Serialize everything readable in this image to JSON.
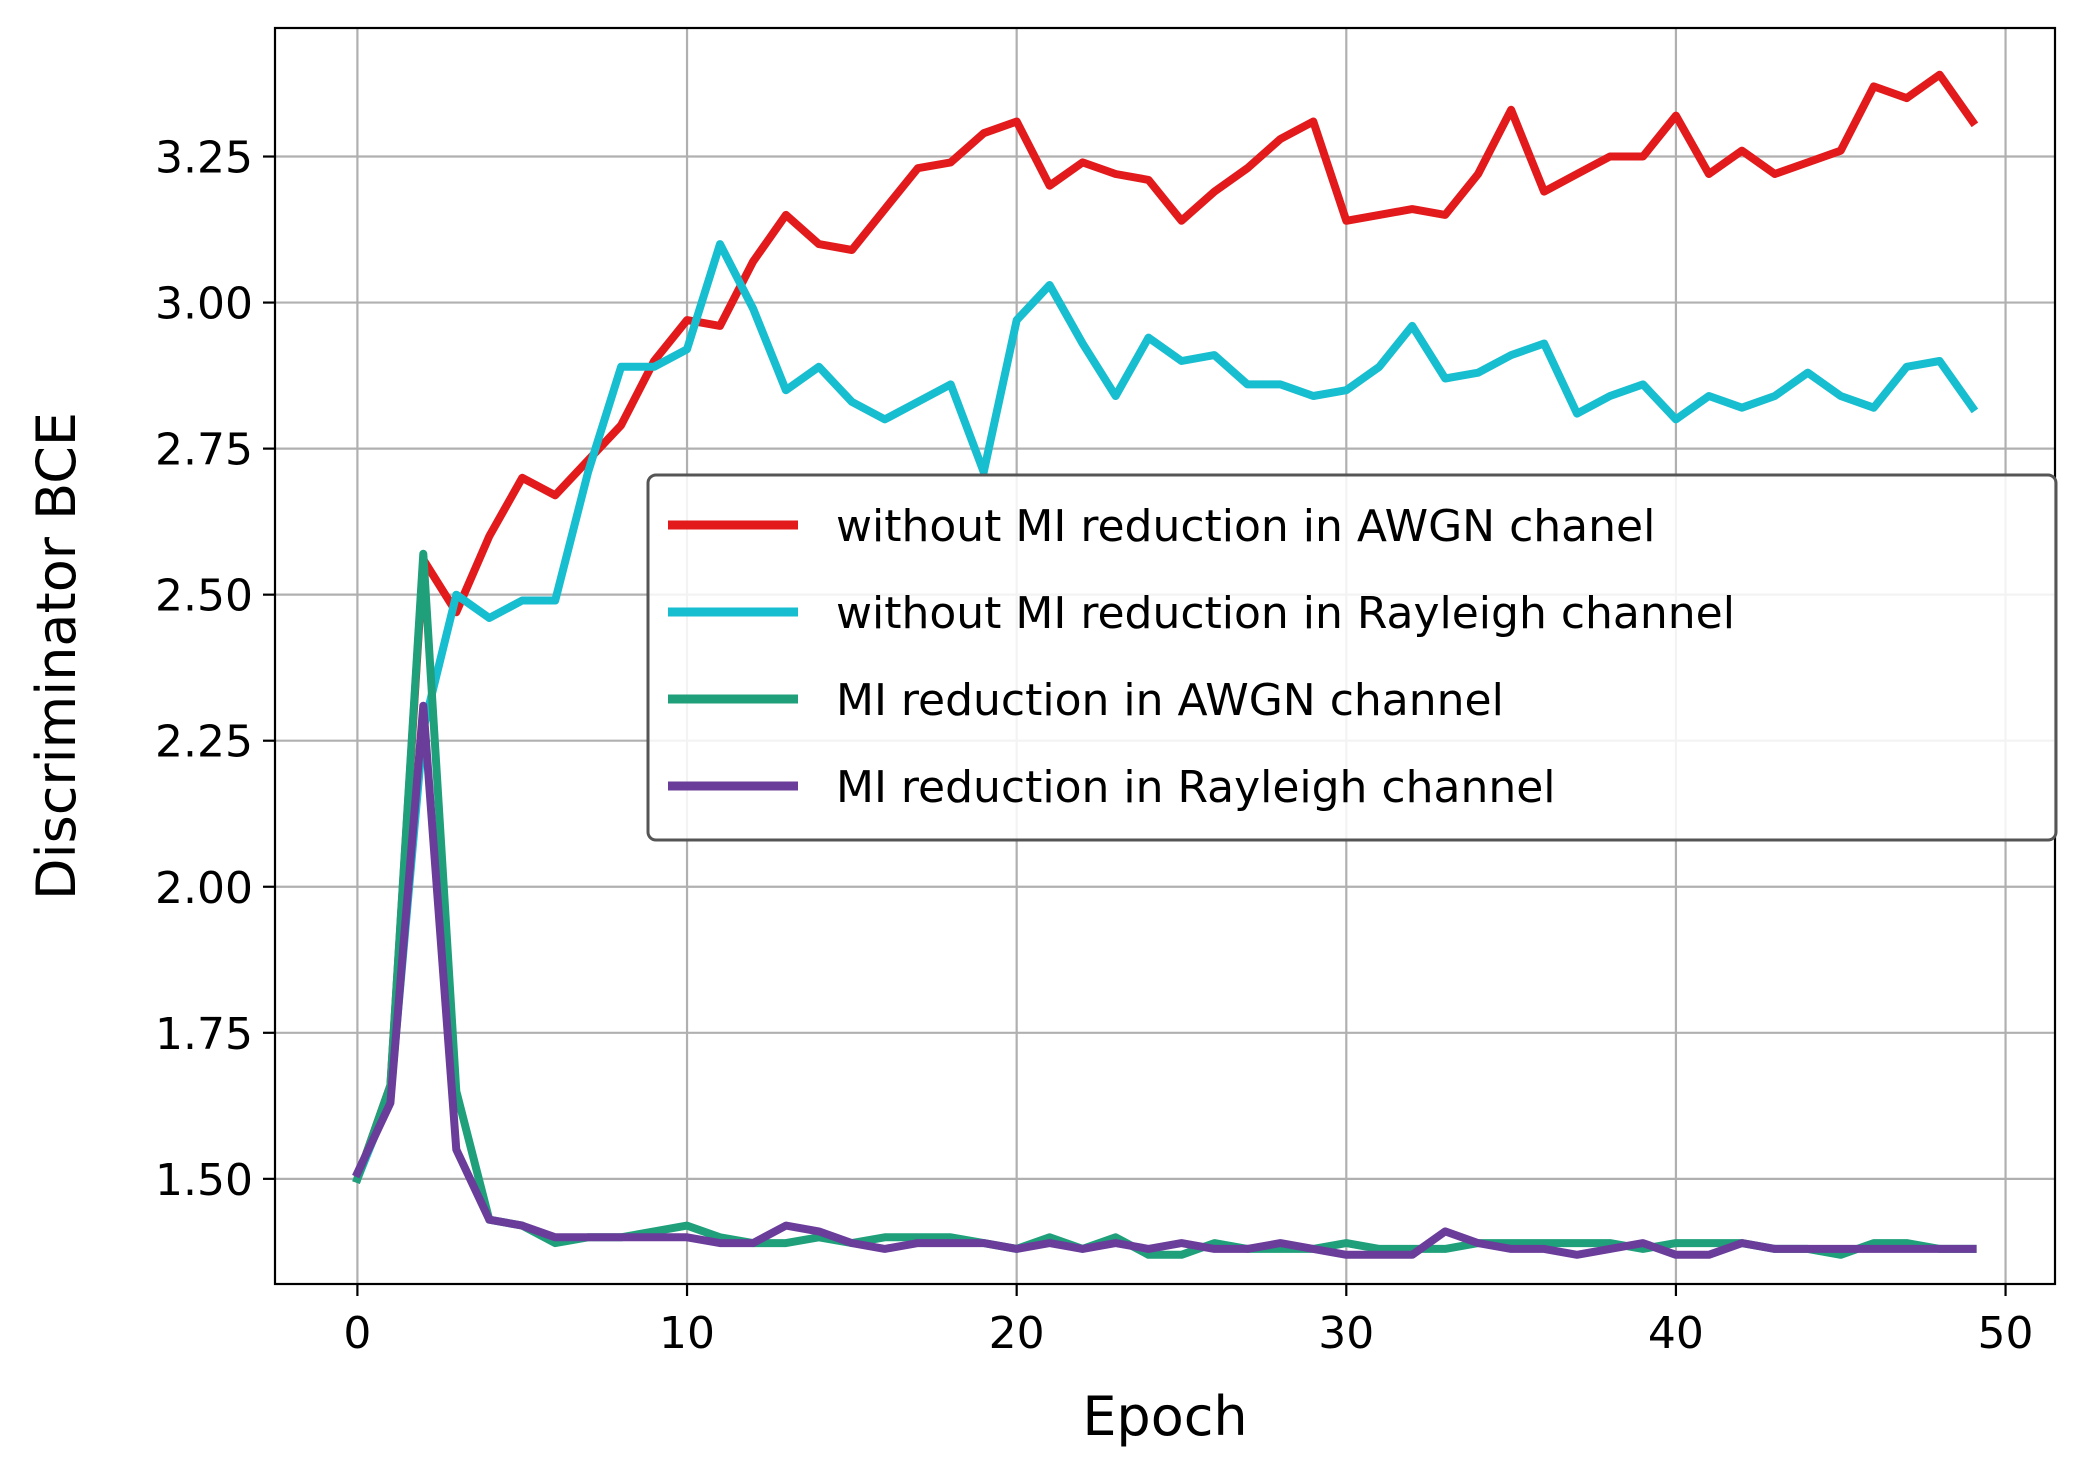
{
  "chart_data": {
    "type": "line",
    "title": "",
    "xlabel": "Epoch",
    "ylabel": "Discriminator BCE",
    "xlim": [
      -2.5,
      51.5
    ],
    "ylim": [
      1.32,
      3.47
    ],
    "xticks": [
      0,
      10,
      20,
      30,
      40,
      50
    ],
    "xtick_labels": [
      "0",
      "10",
      "20",
      "30",
      "40",
      "50"
    ],
    "yticks": [
      1.5,
      1.75,
      2.0,
      2.25,
      2.5,
      2.75,
      3.0,
      3.25
    ],
    "ytick_labels": [
      "1.50",
      "1.75",
      "2.00",
      "2.25",
      "2.50",
      "2.75",
      "3.00",
      "3.25"
    ],
    "grid": true,
    "legend_position": "center-right",
    "x": [
      0,
      1,
      2,
      3,
      4,
      5,
      6,
      7,
      8,
      9,
      10,
      11,
      12,
      13,
      14,
      15,
      16,
      17,
      18,
      19,
      20,
      21,
      22,
      23,
      24,
      25,
      26,
      27,
      28,
      29,
      30,
      31,
      32,
      33,
      34,
      35,
      36,
      37,
      38,
      39,
      40,
      41,
      42,
      43,
      44,
      45,
      46,
      47,
      48,
      49
    ],
    "series": [
      {
        "name": "without MI reduction in AWGN chanel",
        "color": "#e31a1c",
        "values": [
          1.5,
          1.66,
          2.56,
          2.47,
          2.6,
          2.7,
          2.67,
          2.73,
          2.79,
          2.9,
          2.97,
          2.96,
          3.07,
          3.15,
          3.1,
          3.09,
          3.16,
          3.23,
          3.24,
          3.29,
          3.31,
          3.2,
          3.24,
          3.22,
          3.21,
          3.14,
          3.19,
          3.23,
          3.28,
          3.31,
          3.14,
          3.15,
          3.16,
          3.15,
          3.22,
          3.33,
          3.19,
          3.22,
          3.25,
          3.25,
          3.32,
          3.22,
          3.26,
          3.22,
          3.24,
          3.26,
          3.37,
          3.35,
          3.39,
          3.31
        ]
      },
      {
        "name": "without MI reduction in Rayleigh channel",
        "color": "#17becf",
        "values": [
          1.5,
          1.64,
          2.27,
          2.5,
          2.46,
          2.49,
          2.49,
          2.71,
          2.89,
          2.89,
          2.92,
          3.1,
          2.99,
          2.85,
          2.89,
          2.83,
          2.8,
          2.83,
          2.86,
          2.71,
          2.97,
          3.03,
          2.93,
          2.84,
          2.94,
          2.9,
          2.91,
          2.86,
          2.86,
          2.84,
          2.85,
          2.89,
          2.96,
          2.87,
          2.88,
          2.91,
          2.93,
          2.81,
          2.84,
          2.86,
          2.8,
          2.84,
          2.82,
          2.84,
          2.88,
          2.84,
          2.82,
          2.89,
          2.9,
          2.82
        ]
      },
      {
        "name": "MI reduction in AWGN channel",
        "color": "#1fa07a",
        "values": [
          1.5,
          1.66,
          2.57,
          1.65,
          1.43,
          1.42,
          1.39,
          1.4,
          1.4,
          1.41,
          1.42,
          1.4,
          1.39,
          1.39,
          1.4,
          1.39,
          1.4,
          1.4,
          1.4,
          1.39,
          1.38,
          1.4,
          1.38,
          1.4,
          1.37,
          1.37,
          1.39,
          1.38,
          1.38,
          1.38,
          1.39,
          1.38,
          1.38,
          1.38,
          1.39,
          1.39,
          1.39,
          1.39,
          1.39,
          1.38,
          1.39,
          1.39,
          1.39,
          1.38,
          1.38,
          1.37,
          1.39,
          1.39,
          1.38,
          1.38
        ]
      },
      {
        "name": "MI reduction in Rayleigh channel",
        "color": "#6a3d9a",
        "values": [
          1.51,
          1.63,
          2.31,
          1.55,
          1.43,
          1.42,
          1.4,
          1.4,
          1.4,
          1.4,
          1.4,
          1.39,
          1.39,
          1.42,
          1.41,
          1.39,
          1.38,
          1.39,
          1.39,
          1.39,
          1.38,
          1.39,
          1.38,
          1.39,
          1.38,
          1.39,
          1.38,
          1.38,
          1.39,
          1.38,
          1.37,
          1.37,
          1.37,
          1.41,
          1.39,
          1.38,
          1.38,
          1.37,
          1.38,
          1.39,
          1.37,
          1.37,
          1.39,
          1.38,
          1.38,
          1.38,
          1.38,
          1.38,
          1.38,
          1.38
        ]
      }
    ]
  }
}
